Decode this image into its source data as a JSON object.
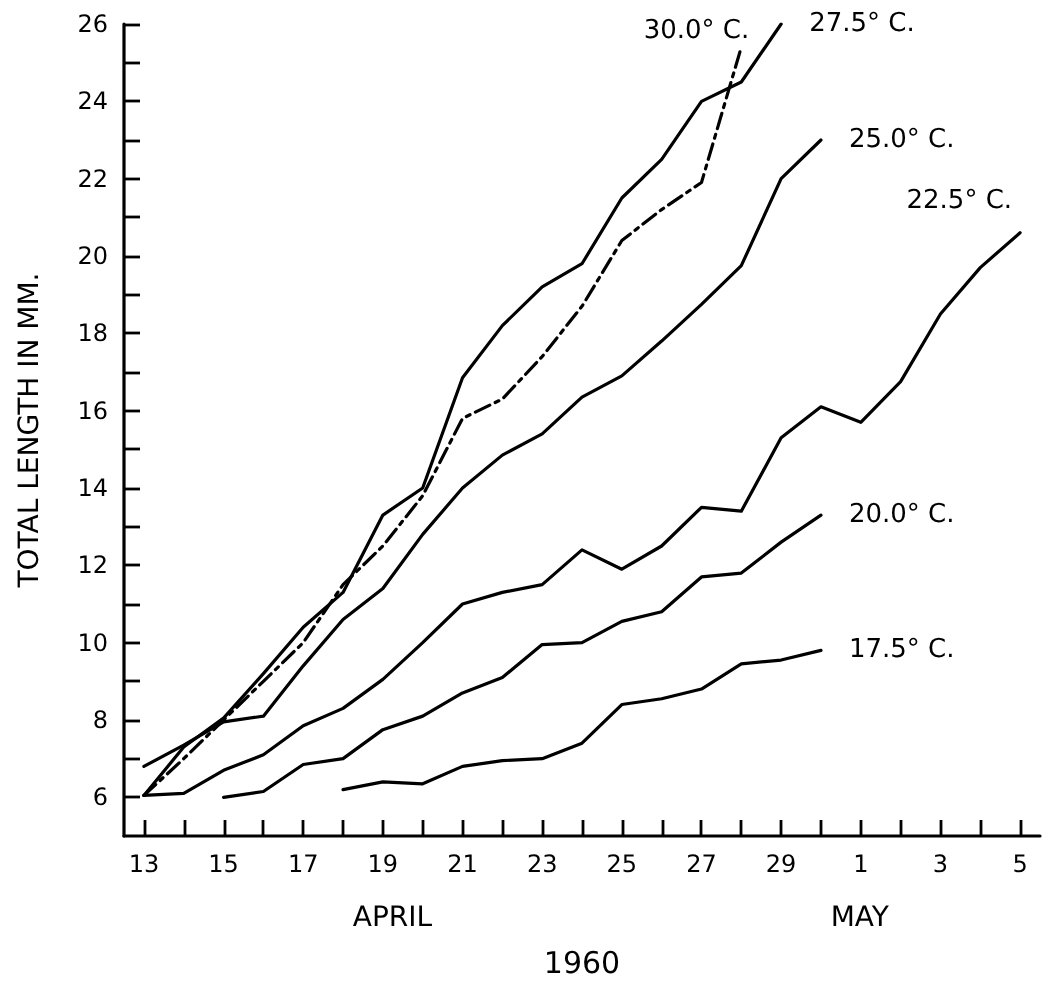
{
  "chart_data": {
    "type": "line",
    "xlabel": "1960",
    "ylabel": "TOTAL LENGTH IN MM.",
    "categories": [
      "13",
      null,
      "15",
      null,
      "17",
      null,
      "19",
      null,
      "21",
      null,
      "23",
      null,
      "25",
      null,
      "27",
      null,
      "29",
      null,
      "1",
      null,
      "3",
      null,
      "5"
    ],
    "ylim": [
      5,
      26
    ],
    "yticks": [
      6,
      {
        "value": 7,
        "label": null
      },
      8,
      {
        "value": 9,
        "label": null
      },
      10,
      {
        "value": 11,
        "label": null
      },
      12,
      {
        "value": 13,
        "label": null
      },
      14,
      {
        "value": 15,
        "label": null
      },
      16,
      {
        "value": 17,
        "label": null
      },
      18,
      {
        "value": 19,
        "label": null
      },
      20,
      {
        "value": 21,
        "label": null
      },
      22,
      {
        "value": 23,
        "label": null
      },
      24,
      {
        "value": 25,
        "label": null
      },
      26
    ],
    "series": [
      {
        "name": "27.5° C.",
        "color": "#000000",
        "line_style": "solid",
        "values": [
          6.05,
          7.3,
          8.05,
          9.2,
          10.4,
          11.3,
          13.3,
          14.0,
          16.85,
          18.2,
          19.2,
          19.8,
          21.5,
          22.5,
          24.0,
          24.5,
          26.0,
          null,
          null,
          null,
          null,
          null,
          null
        ]
      },
      {
        "name": "30.0° C.",
        "color": "#000000",
        "line_style": "dashed",
        "values": [
          6.05,
          7.0,
          8.0,
          9.0,
          10.0,
          11.5,
          12.5,
          13.8,
          15.8,
          16.3,
          17.4,
          18.7,
          20.4,
          21.2,
          21.9,
          25.4,
          null,
          null,
          null,
          null,
          null,
          null,
          null
        ]
      },
      {
        "name": "25.0° C.",
        "color": "#000000",
        "line_style": "solid",
        "values": [
          6.8,
          7.35,
          7.95,
          8.1,
          9.4,
          10.6,
          11.4,
          12.8,
          14.0,
          14.85,
          15.4,
          16.35,
          16.9,
          17.8,
          18.75,
          19.75,
          22.0,
          23.0,
          null,
          null,
          null,
          null,
          null
        ]
      },
      {
        "name": "22.5° C.",
        "color": "#000000",
        "line_style": "solid",
        "values": [
          6.05,
          6.1,
          6.7,
          7.1,
          7.85,
          8.3,
          9.05,
          10.0,
          11.0,
          11.3,
          11.5,
          12.4,
          11.9,
          12.5,
          13.5,
          13.4,
          15.3,
          16.1,
          15.7,
          16.75,
          18.5,
          19.7,
          20.6
        ]
      },
      {
        "name": "20.0° C.",
        "color": "#000000",
        "line_style": "solid",
        "values": [
          null,
          null,
          6.0,
          6.15,
          6.85,
          7.0,
          7.75,
          8.1,
          8.7,
          9.1,
          9.95,
          10.0,
          10.55,
          10.8,
          11.7,
          11.8,
          12.6,
          13.3,
          null,
          null,
          null,
          null,
          null
        ]
      },
      {
        "name": "17.5° C.",
        "color": "#000000",
        "line_style": "solid",
        "values": [
          null,
          null,
          null,
          null,
          null,
          6.2,
          6.4,
          6.35,
          6.8,
          6.95,
          7.0,
          7.4,
          8.4,
          8.55,
          8.8,
          9.45,
          9.55,
          9.8,
          null,
          null,
          null,
          null,
          null
        ]
      }
    ],
    "annotations": [
      "APRIL",
      "MAY"
    ],
    "grid": false,
    "legend": false,
    "marker": "none"
  }
}
